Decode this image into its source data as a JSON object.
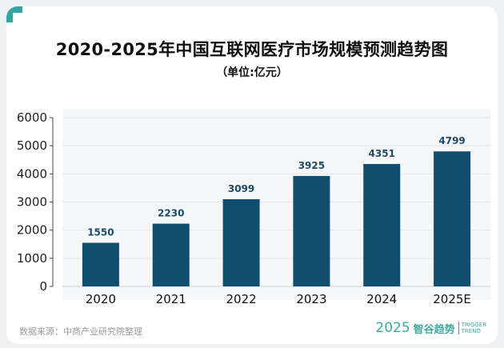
{
  "header": {
    "title": "2020-2025年中国互联网医疗市场规模预测趋势图",
    "subtitle": "（单位:亿元）"
  },
  "footer": {
    "source": "数据来源：中商产业研究院整理",
    "brand_year": "2025",
    "brand_name": "智谷趋势",
    "brand_en_1": "TRIGGER",
    "brand_en_2": "TREND"
  },
  "colors": {
    "bar": "#0f4e6e",
    "label": "#1d4a66",
    "accent": "#3fa8a0"
  },
  "chart_data": {
    "type": "bar",
    "categories": [
      "2020",
      "2021",
      "2022",
      "2023",
      "2024",
      "2025E"
    ],
    "values": [
      1550,
      2230,
      3099,
      3925,
      4351,
      4799
    ],
    "title": "2020-2025年中国互联网医疗市场规模预测趋势图",
    "subtitle": "（单位:亿元）",
    "xlabel": "",
    "ylabel": "",
    "ylim": [
      0,
      6000
    ],
    "yticks": [
      0,
      1000,
      2000,
      3000,
      4000,
      5000,
      6000
    ],
    "data_labels": true,
    "grid": true
  }
}
